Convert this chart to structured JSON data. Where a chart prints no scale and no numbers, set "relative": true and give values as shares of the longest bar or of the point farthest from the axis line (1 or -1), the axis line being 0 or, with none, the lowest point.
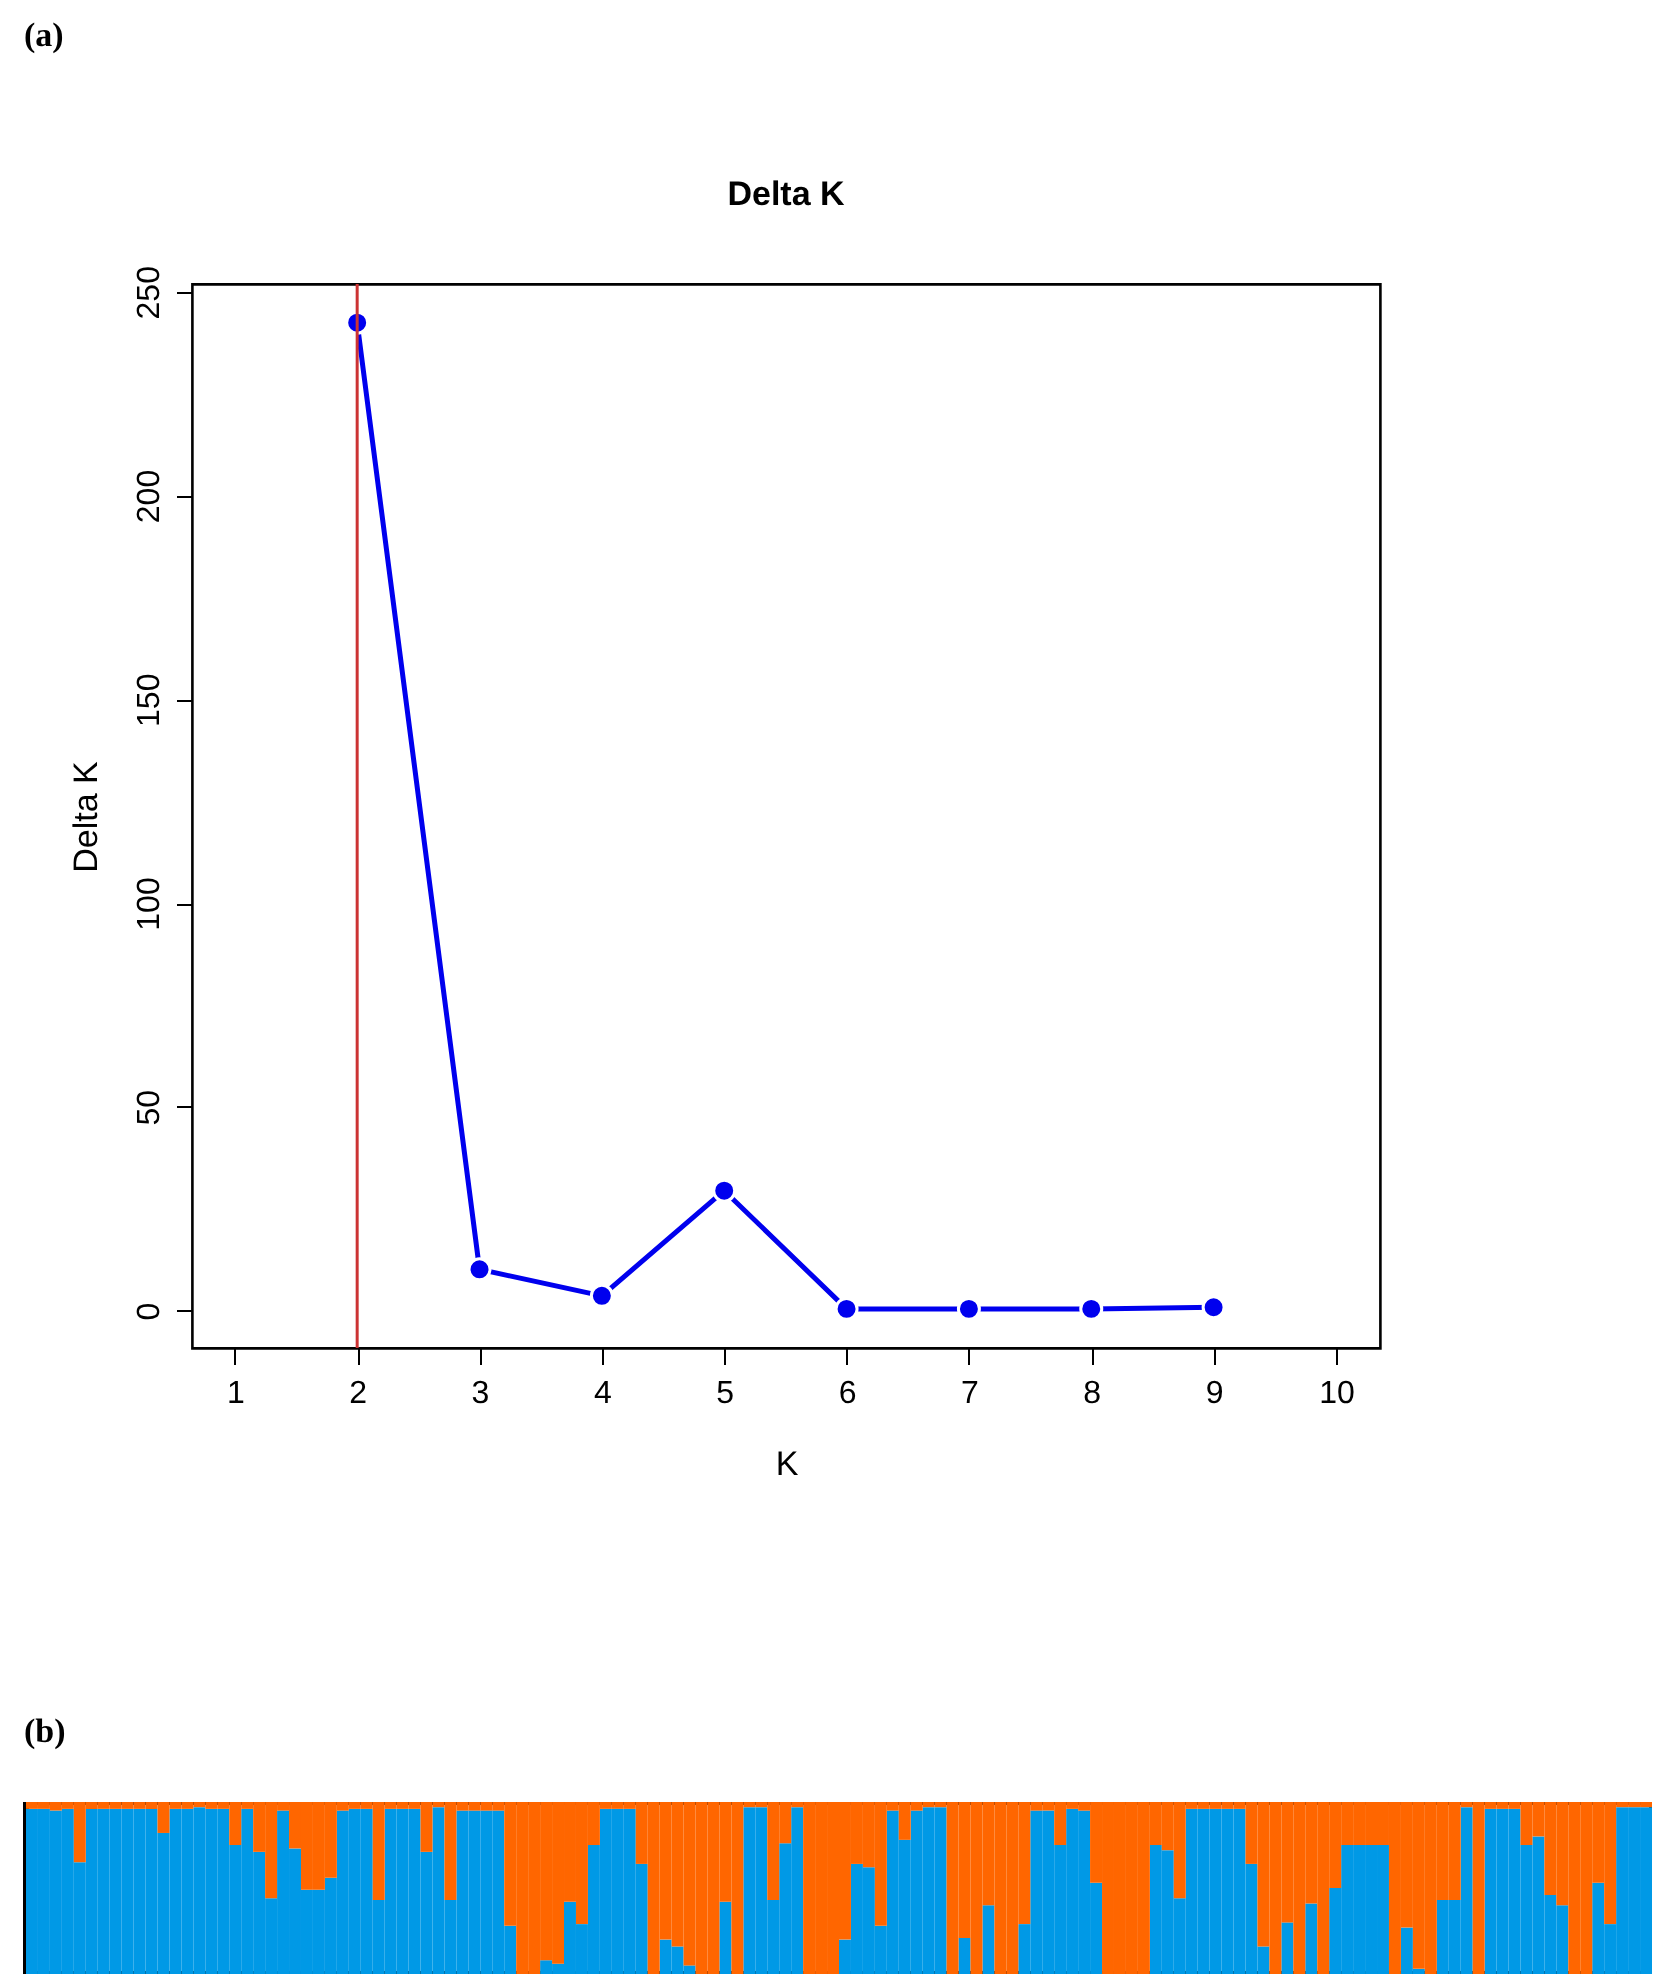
{
  "chart_data": [
    {
      "type": "line",
      "title": "Delta K",
      "xlabel": "K",
      "ylabel": "Delta K",
      "annotations": [
        "(a)"
      ],
      "x": [
        2,
        3,
        4,
        5,
        6,
        7,
        8,
        9
      ],
      "series": [
        {
          "color": "#0000ee",
          "values": [
            242.4,
            10.1,
            3.6,
            29.4,
            0.4,
            0.4,
            0.4,
            0.8
          ]
        }
      ],
      "xlim": [
        0.65,
        10.36
      ],
      "ylim": [
        -9.2,
        251.9
      ],
      "xticks": [
        1,
        2,
        3,
        4,
        5,
        6,
        7,
        8,
        9,
        10
      ],
      "yticks": [
        0,
        50,
        100,
        150,
        200,
        250
      ],
      "marker": "circle",
      "grid": false,
      "legend": false,
      "ref_lines": [
        {
          "axis": "x",
          "value": 2,
          "color": "#cc3333"
        }
      ]
    },
    {
      "type": "bar",
      "stacked": true,
      "relative": true,
      "annotations": [
        "(b)"
      ],
      "legend": false,
      "categories": [
        null,
        null,
        null,
        null,
        null,
        null,
        null,
        null,
        null,
        null,
        null,
        null,
        null,
        null,
        null,
        null,
        null,
        null,
        null,
        null,
        null,
        null,
        null,
        null,
        null,
        null,
        null,
        null,
        null,
        null,
        null,
        null,
        null,
        null,
        null,
        null,
        null,
        null,
        null,
        null,
        null,
        null,
        null,
        null,
        null,
        null,
        null,
        null,
        null,
        null,
        null,
        null,
        null,
        null,
        null,
        null,
        null,
        null,
        null,
        null,
        null,
        null,
        null,
        null,
        null,
        null,
        null,
        null,
        null,
        null,
        null,
        null,
        null,
        null,
        null,
        null,
        null,
        null,
        null,
        null,
        null,
        null,
        null,
        null,
        null,
        null,
        null,
        null,
        null,
        null,
        null,
        null,
        null,
        null,
        null,
        null,
        null,
        null,
        null,
        null,
        null,
        null,
        null,
        null,
        null,
        null,
        null,
        null,
        null,
        null,
        null,
        null,
        null,
        null,
        null,
        null,
        null,
        null,
        null,
        null,
        null,
        null,
        null,
        null,
        null,
        null,
        null,
        null,
        null,
        null,
        null,
        null,
        null,
        null,
        null,
        null
      ],
      "series": [
        {
          "color": "#0099e6",
          "values": [
            0.96,
            0.96,
            0.95,
            0.96,
            0.65,
            0.96,
            0.96,
            0.96,
            0.96,
            0.96,
            0.96,
            0.82,
            0.96,
            0.96,
            0.97,
            0.96,
            0.96,
            0.75,
            0.96,
            0.71,
            0.44,
            0.95,
            0.73,
            0.49,
            0.49,
            0.56,
            0.95,
            0.96,
            0.96,
            0.43,
            0.96,
            0.96,
            0.96,
            0.71,
            0.97,
            0.43,
            0.95,
            0.95,
            0.95,
            0.95,
            0.28,
            0,
            0,
            0.08,
            0.06,
            0.42,
            0.29,
            0.75,
            0.96,
            0.96,
            0.96,
            0.64,
            0,
            0.2,
            0.16,
            0.05,
            0,
            0,
            0.42,
            0,
            0.97,
            0.97,
            0.43,
            0.76,
            0.97,
            0,
            0,
            0,
            0.2,
            0.64,
            0.62,
            0.28,
            0.95,
            0.78,
            0.95,
            0.97,
            0.97,
            0,
            0.21,
            0,
            0.4,
            0,
            0,
            0.29,
            0.95,
            0.95,
            0.75,
            0.96,
            0.95,
            0.53,
            0,
            0,
            0,
            0,
            0.75,
            0.72,
            0.44,
            0.96,
            0.96,
            0.96,
            0.96,
            0.96,
            0.64,
            0.16,
            0,
            0.3,
            0,
            0.41,
            0,
            0.5,
            0.75,
            0.75,
            0.75,
            0.75,
            0,
            0.27,
            0.03,
            0,
            0.43,
            0.43,
            0.97,
            0,
            0.96,
            0.96,
            0.96,
            0.75,
            0.8,
            0.46,
            0.4,
            0,
            0,
            0.53,
            0.29,
            0.97,
            0.97,
            0.97
          ]
        },
        {
          "color": "#ff6600",
          "values": [
            0.04,
            0.04,
            0.05,
            0.04,
            0.35,
            0.04,
            0.04,
            0.04,
            0.04,
            0.04,
            0.04,
            0.18,
            0.04,
            0.04,
            0.03,
            0.04,
            0.04,
            0.25,
            0.04,
            0.29,
            0.56,
            0.05,
            0.27,
            0.51,
            0.51,
            0.44,
            0.05,
            0.04,
            0.04,
            0.57,
            0.04,
            0.04,
            0.04,
            0.29,
            0.03,
            0.57,
            0.05,
            0.05,
            0.05,
            0.05,
            0.72,
            1,
            1,
            0.92,
            0.94,
            0.58,
            0.71,
            0.25,
            0.04,
            0.04,
            0.04,
            0.36,
            1,
            0.8,
            0.84,
            0.95,
            1,
            1,
            0.58,
            1,
            0.03,
            0.03,
            0.57,
            0.24,
            0.03,
            1,
            1,
            1,
            0.8,
            0.36,
            0.38,
            0.72,
            0.05,
            0.22,
            0.05,
            0.03,
            0.03,
            1,
            0.79,
            1,
            0.6,
            1,
            1,
            0.71,
            0.05,
            0.05,
            0.25,
            0.04,
            0.05,
            0.47,
            1,
            1,
            1,
            1,
            0.25,
            0.28,
            0.56,
            0.04,
            0.04,
            0.04,
            0.04,
            0.04,
            0.36,
            0.84,
            1,
            0.7,
            1,
            0.59,
            1,
            0.5,
            0.25,
            0.25,
            0.25,
            0.25,
            1,
            0.73,
            0.97,
            1,
            0.57,
            0.57,
            0.03,
            1,
            0.04,
            0.04,
            0.04,
            0.25,
            0.2,
            0.54,
            0.6,
            1,
            1,
            0.47,
            0.71,
            0.03,
            0.03,
            0.03
          ]
        }
      ]
    }
  ]
}
